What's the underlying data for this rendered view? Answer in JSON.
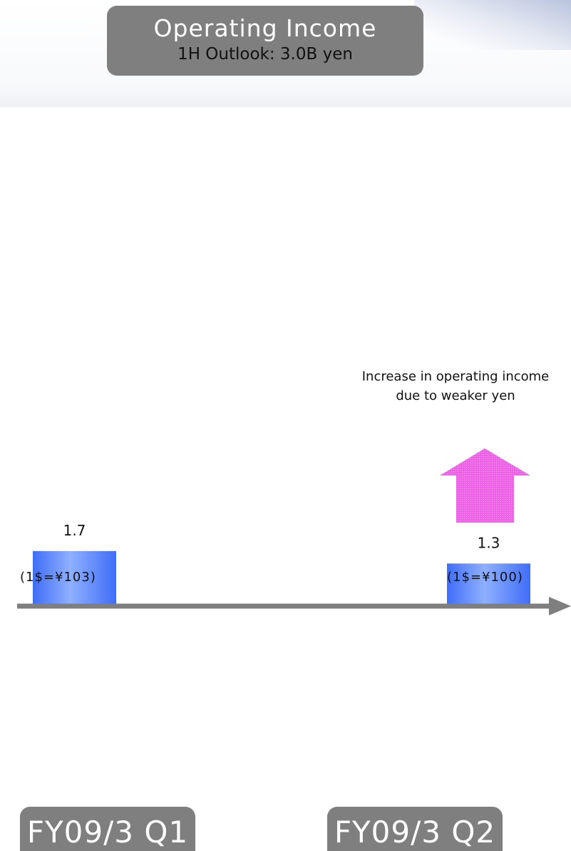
{
  "title": "Operating Income",
  "subtitle": "1H Outlook: 3.0B yen",
  "chart_data": {
    "type": "bar",
    "categories": [
      "FY09/3 Q1",
      "FY09/3 Q2"
    ],
    "values": [
      1.7,
      1.3
    ],
    "data_labels": [
      "1.7",
      "1.3"
    ],
    "exchange_rates": [
      "(1$=¥103)",
      "(1$=¥100)"
    ],
    "annotation": "Increase in operating income due to weaker yen",
    "ylim": [
      0,
      3.0
    ],
    "bar_color": "#4f7df9",
    "arrow_color": "#ef62e8",
    "axis_color": "#7f7f7f"
  }
}
